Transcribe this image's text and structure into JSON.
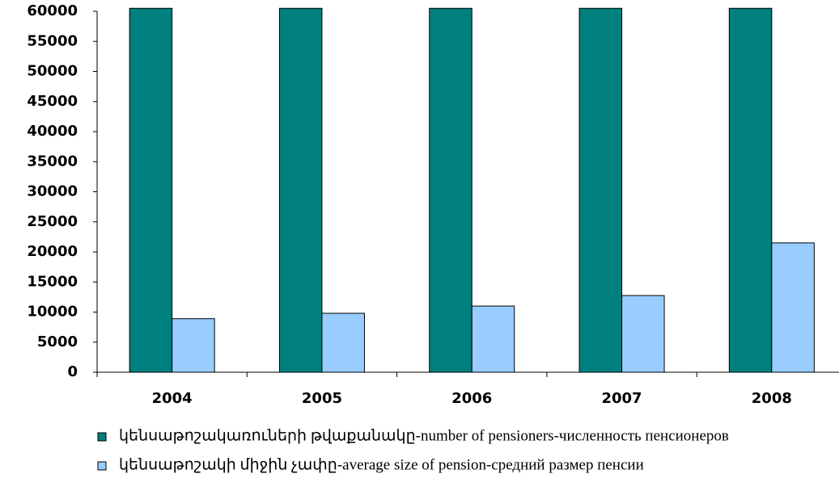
{
  "chart_data": {
    "type": "bar",
    "categories": [
      "2004",
      "2005",
      "2006",
      "2007",
      "2008"
    ],
    "series": [
      {
        "name": "կենսաթոշակառուների թվաքանակը-number of pensioners-численность пенсионеров",
        "color": "#007f7f",
        "values": [
          60500,
          60500,
          60500,
          60500,
          60500
        ]
      },
      {
        "name": "կենսաթոշակի միջին չափը-average size of pension-средний размер пенсии",
        "color": "#99ccff",
        "values": [
          8900,
          9800,
          11000,
          12750,
          21500
        ]
      }
    ],
    "ylim": [
      0,
      60000
    ],
    "yticks": [
      0,
      5000,
      10000,
      15000,
      20000,
      25000,
      30000,
      35000,
      40000,
      45000,
      50000,
      55000,
      60000
    ],
    "legend": "bottom"
  }
}
